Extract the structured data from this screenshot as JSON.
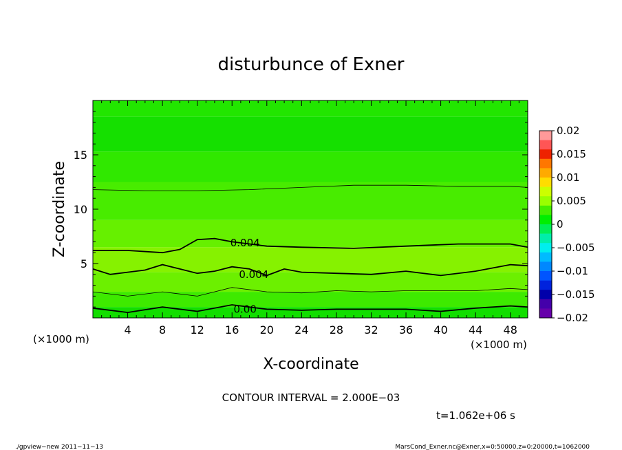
{
  "chart_data": {
    "type": "heatmap",
    "title": "disturbunce of Exner",
    "xlabel": "X-coordinate",
    "ylabel": "Z-coordinate",
    "x_unit_left": "(×1000 m)",
    "x_unit_right": "(×1000 m)",
    "xlim": [
      0,
      50
    ],
    "ylim": [
      0,
      20
    ],
    "x_ticks": [
      4,
      8,
      12,
      16,
      20,
      24,
      28,
      32,
      36,
      40,
      44,
      48
    ],
    "y_ticks": [
      5,
      10,
      15
    ],
    "contour_labels": [
      "0.004",
      "0.004",
      "0.00"
    ],
    "colorbar": {
      "ticks": [
        "0.02",
        "0.015",
        "0.01",
        "0.005",
        "0",
        "−0.005",
        "−0.01",
        "−0.015",
        "−0.02"
      ],
      "range": [
        -0.02,
        0.02
      ],
      "colors": [
        "#FF9999",
        "#FF5555",
        "#EE2200",
        "#FF7700",
        "#FFAA00",
        "#FFDD00",
        "#CCFF00",
        "#99FF00",
        "#44EE00",
        "#00EE00",
        "#00EE55",
        "#00EEAA",
        "#00EEEE",
        "#00BBFF",
        "#0088FF",
        "#0055FF",
        "#0022DD",
        "#0000AA",
        "#4400AA",
        "#6600AA"
      ]
    },
    "bands": [
      {
        "z": [
          18.5,
          20
        ],
        "color": "#22E600"
      },
      {
        "z": [
          15.3,
          18.5
        ],
        "color": "#15E000"
      },
      {
        "z": [
          12.5,
          15.3
        ],
        "color": "#30E800"
      },
      {
        "z": [
          9.0,
          12.5
        ],
        "color": "#48EC00"
      },
      {
        "z": [
          6.5,
          9.0
        ],
        "color": "#66F000"
      },
      {
        "z": [
          4.2,
          6.5
        ],
        "color": "#86F200"
      },
      {
        "z": [
          2.4,
          4.2
        ],
        "color": "#6CF000"
      },
      {
        "z": [
          1.0,
          2.4
        ],
        "color": "#3EEA00"
      },
      {
        "z": [
          0,
          1.0
        ],
        "color": "#12DE00"
      }
    ],
    "contours": [
      {
        "x": [
          0,
          6,
          12,
          18,
          24,
          30,
          36,
          42,
          48,
          50
        ],
        "z": [
          11.8,
          11.7,
          11.7,
          11.8,
          12.0,
          12.2,
          12.2,
          12.1,
          12.1,
          12.0
        ],
        "weight": "thin"
      },
      {
        "x": [
          0,
          4,
          8,
          10,
          12,
          14,
          16,
          20,
          24,
          30,
          36,
          42,
          48,
          50
        ],
        "z": [
          6.2,
          6.2,
          6.0,
          6.3,
          7.2,
          7.3,
          7.0,
          6.6,
          6.5,
          6.4,
          6.6,
          6.8,
          6.8,
          6.5
        ],
        "weight": "thick"
      },
      {
        "x": [
          0,
          2,
          4,
          6,
          8,
          10,
          12,
          14,
          16,
          18,
          20,
          22,
          24,
          28,
          32,
          36,
          40,
          44,
          48,
          50
        ],
        "z": [
          4.5,
          4.0,
          4.2,
          4.4,
          4.9,
          4.5,
          4.1,
          4.3,
          4.7,
          4.5,
          3.9,
          4.5,
          4.2,
          4.1,
          4.0,
          4.3,
          3.9,
          4.3,
          4.9,
          4.8
        ],
        "weight": "thick"
      },
      {
        "x": [
          0,
          4,
          8,
          12,
          16,
          20,
          24,
          28,
          32,
          36,
          40,
          44,
          48,
          50
        ],
        "z": [
          2.4,
          2.0,
          2.4,
          2.0,
          2.8,
          2.4,
          2.3,
          2.5,
          2.4,
          2.5,
          2.5,
          2.5,
          2.7,
          2.6
        ],
        "weight": "thin"
      },
      {
        "x": [
          0,
          4,
          8,
          12,
          16,
          20,
          24,
          28,
          32,
          36,
          40,
          44,
          48,
          50
        ],
        "z": [
          0.9,
          0.5,
          1.0,
          0.6,
          1.2,
          0.8,
          0.7,
          0.8,
          0.8,
          0.8,
          0.6,
          0.9,
          1.1,
          1.0
        ],
        "weight": "thick"
      }
    ]
  },
  "annotations": {
    "contour_interval": "CONTOUR INTERVAL = 2.000E−03",
    "time": "t=1.062e+06 s",
    "footer_left": "./gpview−new 2011−11−13",
    "footer_right": "MarsCond_Exner.nc@Exner,x=0:50000,z=0:20000,t=1062000"
  }
}
